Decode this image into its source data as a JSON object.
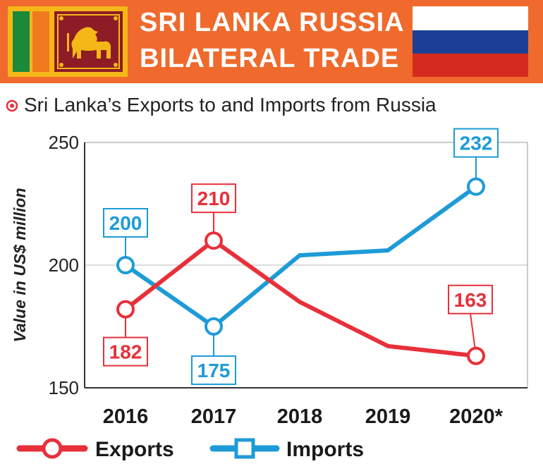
{
  "header": {
    "title_line1": "SRI LANKA RUSSIA",
    "title_line2": "BILATERAL TRADE"
  },
  "subtitle": "Sri Lanka’s Exports to and Imports from Russia",
  "colors": {
    "header_bg": "#ef6a2c",
    "exports": "#e8303a",
    "imports": "#1e9bd7",
    "flag_lk_border": "#f5b718",
    "flag_lk_green": "#1a8a3a",
    "flag_lk_orange": "#f07a1d",
    "flag_lk_maroon": "#8d1c26",
    "flag_ru_blue": "#1c3f95",
    "flag_ru_red": "#d52b1e"
  },
  "icons": {
    "subtitle_bullet": "target-bullet-icon",
    "flag_left": "sri-lanka-flag-icon",
    "flag_right": "russia-flag-icon"
  },
  "chart_data": {
    "type": "line",
    "title": "Sri Lanka’s Exports to and Imports from Russia",
    "categories": [
      "2016",
      "2017",
      "2018",
      "2019",
      "2020*"
    ],
    "ylabel": "Value in US$ million",
    "xlabel": "",
    "ylim": [
      150,
      250
    ],
    "yticks": [
      "150",
      "200",
      "250"
    ],
    "grid": "horizontal",
    "legend_position": "bottom",
    "series": [
      {
        "name": "Exports",
        "marker": "circle",
        "color": "#e8303a",
        "values": [
          182,
          210,
          185,
          167,
          163
        ],
        "labels": [
          "182",
          "210",
          null,
          null,
          "163"
        ]
      },
      {
        "name": "Imports",
        "marker": "square",
        "color": "#1e9bd7",
        "values": [
          200,
          175,
          204,
          206,
          232
        ],
        "labels": [
          "200",
          "175",
          null,
          null,
          "232"
        ]
      }
    ]
  }
}
